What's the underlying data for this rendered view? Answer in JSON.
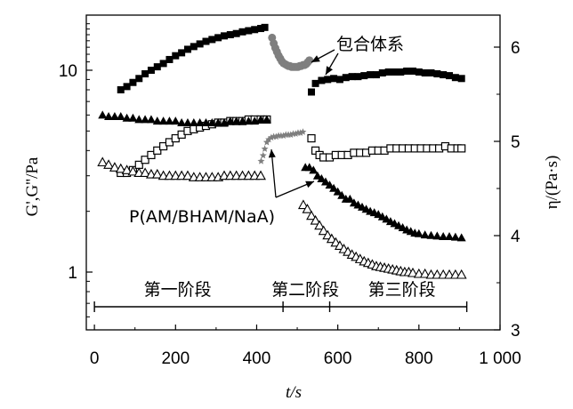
{
  "chart_data": {
    "type": "scatter",
    "title": "",
    "xlabel": "t/s",
    "ylabel_left": "G',G''/Pa",
    "ylabel_right": "η/(Pa·s)",
    "xlim": [
      -20,
      1000
    ],
    "ylim_left": [
      0.55,
      18
    ],
    "ylim_left_scale": "log",
    "ylim_right": [
      3,
      6.4
    ],
    "xticks": [
      0,
      200,
      400,
      600,
      800,
      1000
    ],
    "xtick_labels": [
      "0",
      "200",
      "400",
      "600",
      "800",
      "1 000"
    ],
    "yticks_left": [
      1,
      10
    ],
    "ytick_labels_left": [
      "1",
      "10"
    ],
    "yticks_right": [
      3,
      4,
      5,
      6
    ],
    "ytick_labels_right": [
      "3",
      "4",
      "5",
      "6"
    ],
    "grid": false,
    "series": [
      {
        "axis": "left",
        "marker": "filled-square",
        "points": [
          [
            65,
            8.0
          ],
          [
            80,
            8.3
          ],
          [
            95,
            8.7
          ],
          [
            110,
            9.1
          ],
          [
            125,
            9.6
          ],
          [
            140,
            10.0
          ],
          [
            155,
            10.4
          ],
          [
            170,
            10.8
          ],
          [
            185,
            11.3
          ],
          [
            200,
            11.8
          ],
          [
            215,
            12.2
          ],
          [
            230,
            12.7
          ],
          [
            245,
            13.1
          ],
          [
            260,
            13.5
          ],
          [
            275,
            13.9
          ],
          [
            290,
            14.2
          ],
          [
            305,
            14.5
          ],
          [
            320,
            14.8
          ],
          [
            335,
            15.0
          ],
          [
            350,
            15.2
          ],
          [
            365,
            15.5
          ],
          [
            380,
            15.7
          ],
          [
            395,
            15.9
          ],
          [
            410,
            16.1
          ],
          [
            420,
            16.3
          ],
          [
            535,
            7.8
          ],
          [
            545,
            8.6
          ],
          [
            560,
            8.9
          ],
          [
            575,
            9.0
          ],
          [
            590,
            9.1
          ],
          [
            605,
            9.0
          ],
          [
            620,
            9.2
          ],
          [
            635,
            9.3
          ],
          [
            650,
            9.3
          ],
          [
            665,
            9.4
          ],
          [
            680,
            9.5
          ],
          [
            695,
            9.5
          ],
          [
            710,
            9.7
          ],
          [
            725,
            9.8
          ],
          [
            740,
            9.8
          ],
          [
            755,
            9.8
          ],
          [
            770,
            9.9
          ],
          [
            785,
            9.9
          ],
          [
            800,
            9.8
          ],
          [
            815,
            9.7
          ],
          [
            830,
            9.7
          ],
          [
            845,
            9.6
          ],
          [
            860,
            9.5
          ],
          [
            875,
            9.4
          ],
          [
            890,
            9.2
          ],
          [
            905,
            9.1
          ]
        ]
      },
      {
        "axis": "left",
        "marker": "open-square",
        "points": [
          [
            65,
            3.1
          ],
          [
            80,
            3.1
          ],
          [
            95,
            3.2
          ],
          [
            110,
            3.4
          ],
          [
            125,
            3.6
          ],
          [
            140,
            3.8
          ],
          [
            155,
            4.0
          ],
          [
            170,
            4.2
          ],
          [
            185,
            4.4
          ],
          [
            200,
            4.6
          ],
          [
            215,
            4.8
          ],
          [
            230,
            5.0
          ],
          [
            245,
            5.1
          ],
          [
            260,
            5.2
          ],
          [
            275,
            5.3
          ],
          [
            290,
            5.4
          ],
          [
            305,
            5.5
          ],
          [
            320,
            5.5
          ],
          [
            335,
            5.6
          ],
          [
            350,
            5.6
          ],
          [
            365,
            5.6
          ],
          [
            380,
            5.7
          ],
          [
            395,
            5.7
          ],
          [
            410,
            5.7
          ],
          [
            425,
            5.7
          ],
          [
            535,
            4.6
          ],
          [
            545,
            4.0
          ],
          [
            555,
            3.8
          ],
          [
            565,
            3.7
          ],
          [
            580,
            3.7
          ],
          [
            595,
            3.8
          ],
          [
            610,
            3.8
          ],
          [
            625,
            3.8
          ],
          [
            640,
            3.9
          ],
          [
            655,
            3.9
          ],
          [
            670,
            3.9
          ],
          [
            685,
            4.0
          ],
          [
            700,
            4.0
          ],
          [
            715,
            4.0
          ],
          [
            730,
            4.1
          ],
          [
            745,
            4.1
          ],
          [
            760,
            4.1
          ],
          [
            775,
            4.1
          ],
          [
            790,
            4.1
          ],
          [
            805,
            4.1
          ],
          [
            820,
            4.1
          ],
          [
            835,
            4.1
          ],
          [
            850,
            4.1
          ],
          [
            865,
            4.2
          ],
          [
            880,
            4.1
          ],
          [
            895,
            4.1
          ],
          [
            905,
            4.1
          ]
        ]
      },
      {
        "axis": "left",
        "marker": "filled-triangle",
        "points": [
          [
            20,
            6.0
          ],
          [
            35,
            5.9
          ],
          [
            50,
            5.9
          ],
          [
            65,
            5.9
          ],
          [
            80,
            5.8
          ],
          [
            95,
            5.8
          ],
          [
            110,
            5.7
          ],
          [
            125,
            5.7
          ],
          [
            140,
            5.7
          ],
          [
            155,
            5.6
          ],
          [
            170,
            5.6
          ],
          [
            185,
            5.6
          ],
          [
            200,
            5.6
          ],
          [
            215,
            5.5
          ],
          [
            230,
            5.5
          ],
          [
            245,
            5.5
          ],
          [
            260,
            5.5
          ],
          [
            275,
            5.5
          ],
          [
            290,
            5.5
          ],
          [
            305,
            5.5
          ],
          [
            320,
            5.5
          ],
          [
            335,
            5.6
          ],
          [
            350,
            5.6
          ],
          [
            365,
            5.6
          ],
          [
            380,
            5.6
          ],
          [
            395,
            5.6
          ],
          [
            410,
            5.7
          ],
          [
            425,
            5.7
          ],
          [
            520,
            3.3
          ],
          [
            530,
            3.3
          ],
          [
            540,
            3.2
          ],
          [
            550,
            3.0
          ],
          [
            560,
            2.9
          ],
          [
            570,
            2.8
          ],
          [
            580,
            2.7
          ],
          [
            590,
            2.6
          ],
          [
            600,
            2.5
          ],
          [
            610,
            2.4
          ],
          [
            620,
            2.3
          ],
          [
            630,
            2.3
          ],
          [
            640,
            2.2
          ],
          [
            650,
            2.15
          ],
          [
            660,
            2.1
          ],
          [
            670,
            2.05
          ],
          [
            680,
            2.0
          ],
          [
            690,
            1.97
          ],
          [
            700,
            1.93
          ],
          [
            710,
            1.88
          ],
          [
            720,
            1.83
          ],
          [
            730,
            1.78
          ],
          [
            740,
            1.74
          ],
          [
            750,
            1.7
          ],
          [
            760,
            1.66
          ],
          [
            770,
            1.62
          ],
          [
            780,
            1.59
          ],
          [
            790,
            1.56
          ],
          [
            800,
            1.55
          ],
          [
            815,
            1.53
          ],
          [
            830,
            1.52
          ],
          [
            845,
            1.51
          ],
          [
            860,
            1.5
          ],
          [
            875,
            1.5
          ],
          [
            890,
            1.49
          ],
          [
            905,
            1.48
          ]
        ]
      },
      {
        "axis": "left",
        "marker": "open-triangle",
        "points": [
          [
            20,
            3.5
          ],
          [
            35,
            3.4
          ],
          [
            50,
            3.3
          ],
          [
            65,
            3.25
          ],
          [
            80,
            3.2
          ],
          [
            95,
            3.15
          ],
          [
            110,
            3.1
          ],
          [
            125,
            3.1
          ],
          [
            140,
            3.05
          ],
          [
            155,
            3.05
          ],
          [
            170,
            3.0
          ],
          [
            185,
            3.0
          ],
          [
            200,
            3.0
          ],
          [
            215,
            3.0
          ],
          [
            230,
            3.0
          ],
          [
            245,
            2.95
          ],
          [
            260,
            2.95
          ],
          [
            275,
            2.95
          ],
          [
            290,
            2.95
          ],
          [
            305,
            2.95
          ],
          [
            320,
            3.0
          ],
          [
            335,
            3.0
          ],
          [
            350,
            3.0
          ],
          [
            365,
            3.0
          ],
          [
            380,
            3.0
          ],
          [
            395,
            3.0
          ],
          [
            410,
            3.0
          ],
          [
            515,
            2.15
          ],
          [
            525,
            2.05
          ],
          [
            535,
            1.9
          ],
          [
            545,
            1.8
          ],
          [
            555,
            1.7
          ],
          [
            565,
            1.6
          ],
          [
            575,
            1.52
          ],
          [
            585,
            1.46
          ],
          [
            595,
            1.4
          ],
          [
            605,
            1.35
          ],
          [
            615,
            1.3
          ],
          [
            625,
            1.26
          ],
          [
            635,
            1.22
          ],
          [
            645,
            1.19
          ],
          [
            655,
            1.16
          ],
          [
            665,
            1.13
          ],
          [
            675,
            1.11
          ],
          [
            685,
            1.09
          ],
          [
            695,
            1.07
          ],
          [
            705,
            1.06
          ],
          [
            715,
            1.05
          ],
          [
            725,
            1.04
          ],
          [
            735,
            1.03
          ],
          [
            745,
            1.02
          ],
          [
            755,
            1.01
          ],
          [
            765,
            1.0
          ],
          [
            775,
            1.0
          ],
          [
            785,
            0.99
          ],
          [
            800,
            0.98
          ],
          [
            815,
            0.98
          ],
          [
            830,
            0.97
          ],
          [
            845,
            0.97
          ],
          [
            860,
            0.97
          ],
          [
            875,
            0.97
          ],
          [
            890,
            0.97
          ],
          [
            905,
            0.97
          ]
        ]
      },
      {
        "axis": "right",
        "marker": "filled-circle",
        "color": "#7f7f7f",
        "points": [
          [
            438,
            6.1
          ],
          [
            442,
            6.04
          ],
          [
            446,
            5.99
          ],
          [
            450,
            5.95
          ],
          [
            454,
            5.91
          ],
          [
            458,
            5.88
          ],
          [
            462,
            5.85
          ],
          [
            466,
            5.83
          ],
          [
            470,
            5.82
          ],
          [
            474,
            5.81
          ],
          [
            478,
            5.8
          ],
          [
            482,
            5.8
          ],
          [
            486,
            5.79
          ],
          [
            490,
            5.79
          ],
          [
            494,
            5.79
          ],
          [
            498,
            5.79
          ],
          [
            502,
            5.79
          ],
          [
            506,
            5.8
          ],
          [
            510,
            5.8
          ],
          [
            514,
            5.81
          ],
          [
            518,
            5.81
          ],
          [
            522,
            5.82
          ],
          [
            526,
            5.84
          ],
          [
            530,
            5.86
          ]
        ]
      },
      {
        "axis": "right",
        "marker": "star",
        "color": "#7f7f7f",
        "points": [
          [
            411,
            4.79
          ],
          [
            416,
            4.85
          ],
          [
            420,
            4.92
          ],
          [
            425,
            4.99
          ],
          [
            430,
            5.02
          ],
          [
            436,
            5.04
          ],
          [
            442,
            5.05
          ],
          [
            448,
            5.05
          ],
          [
            454,
            5.06
          ],
          [
            460,
            5.06
          ],
          [
            466,
            5.06
          ],
          [
            472,
            5.07
          ],
          [
            478,
            5.07
          ],
          [
            484,
            5.07
          ],
          [
            490,
            5.08
          ],
          [
            496,
            5.08
          ],
          [
            502,
            5.09
          ],
          [
            508,
            5.09
          ],
          [
            514,
            5.1
          ]
        ]
      }
    ],
    "annotations": [
      {
        "text": "包合体系"
      },
      {
        "text": "P(AM/BHAM/NaA)"
      }
    ],
    "stages": [
      {
        "label": "第一阶段"
      },
      {
        "label": "第二阶段"
      },
      {
        "label": "第三阶段"
      }
    ]
  }
}
